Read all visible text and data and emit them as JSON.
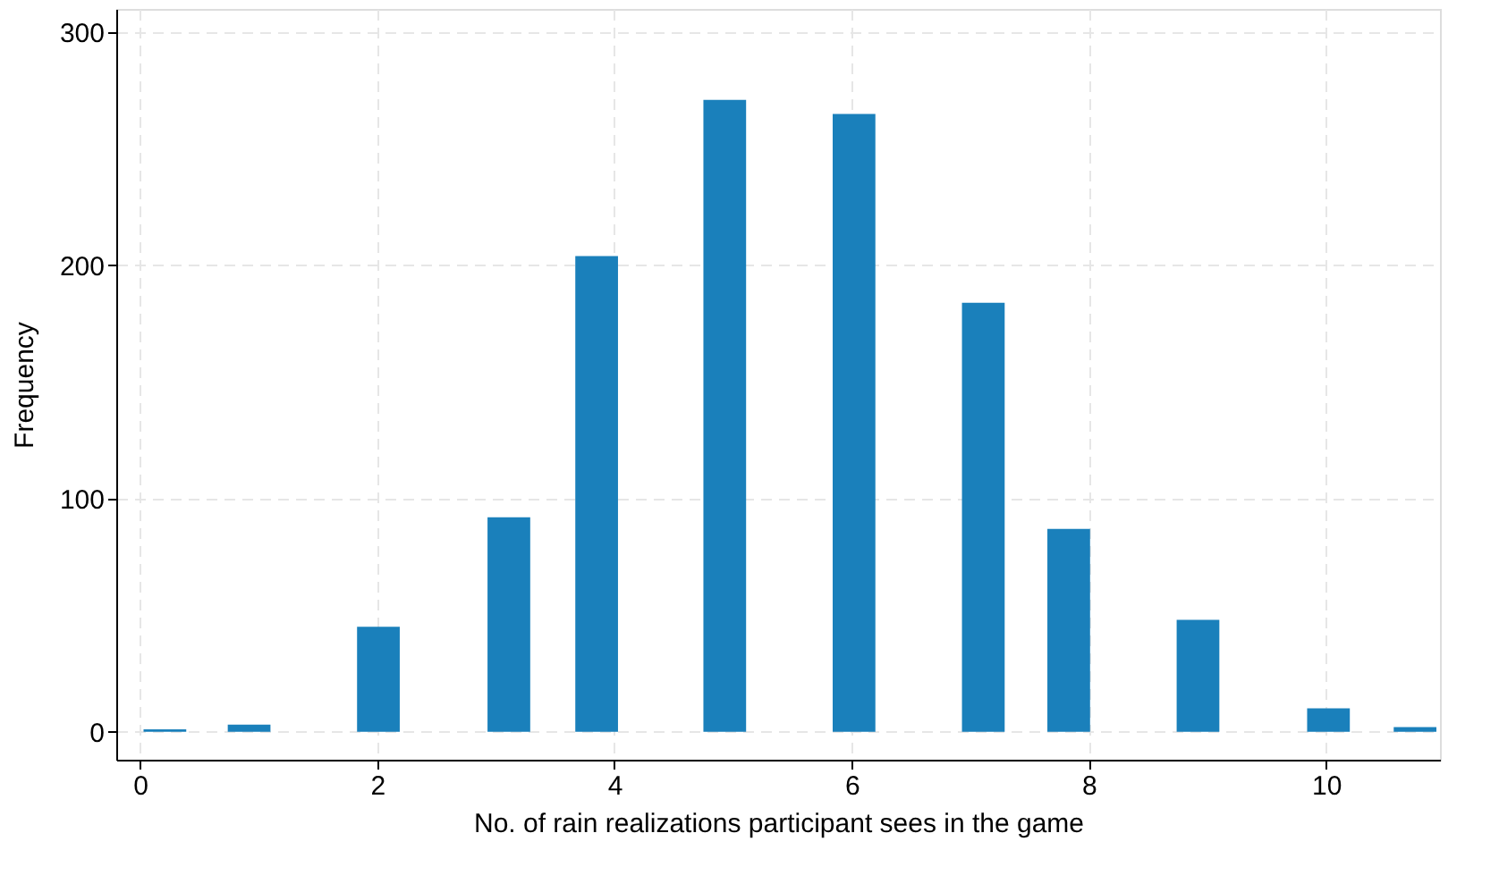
{
  "chart_data": {
    "type": "bar",
    "xlabel": "No. of rain realizations participant sees in the game",
    "ylabel": "Frequency",
    "x": [
      0.21,
      0.92,
      2.01,
      3.11,
      3.85,
      4.93,
      6.02,
      7.11,
      7.83,
      8.92,
      10.02,
      10.75
    ],
    "values": [
      1,
      3,
      45,
      92,
      204,
      271,
      265,
      184,
      87,
      48,
      10,
      2
    ],
    "color": "#1a80bb",
    "xlim": [
      -0.2,
      10.96
    ],
    "xticks": [
      0,
      2,
      4,
      6,
      8,
      10
    ],
    "ylim": [
      -12,
      310
    ],
    "yticks": [
      0,
      100,
      200,
      300
    ],
    "grid": true
  }
}
